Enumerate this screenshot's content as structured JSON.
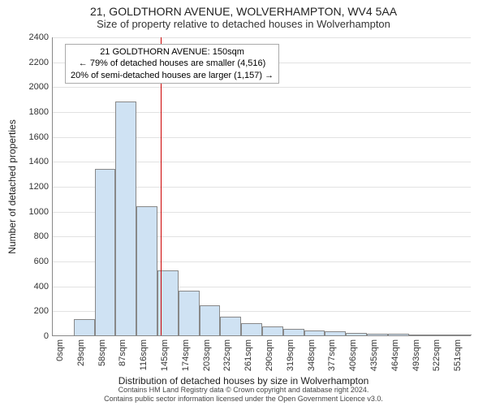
{
  "title": "21, GOLDTHORN AVENUE, WOLVERHAMPTON, WV4 5AA",
  "subtitle": "Size of property relative to detached houses in Wolverhampton",
  "chart": {
    "type": "histogram",
    "ylabel": "Number of detached properties",
    "xlabel": "Distribution of detached houses by size in Wolverhampton",
    "ylim": [
      0,
      2400
    ],
    "ytick_step": 200,
    "xtick_step": 29,
    "xtick_max": 575,
    "xtick_suffix": "sqm",
    "bar_color": "#cfe2f3",
    "bar_border": "#888888",
    "grid_color": "#e2e2e2",
    "background": "#ffffff",
    "ref_line_color": "#cc0000",
    "ref_line_x": 150,
    "xbin_width": 29,
    "values": [
      0,
      130,
      1340,
      1880,
      1040,
      520,
      360,
      240,
      150,
      100,
      70,
      50,
      40,
      30,
      20,
      15,
      10,
      8,
      6,
      4
    ],
    "infobox": {
      "line1": "21 GOLDTHORN AVENUE: 150sqm",
      "line2": "← 79% of detached houses are smaller (4,516)",
      "line3": "20% of semi-detached houses are larger (1,157) →"
    }
  },
  "footer": {
    "line1": "Contains HM Land Registry data © Crown copyright and database right 2024.",
    "line2": "Contains public sector information licensed under the Open Government Licence v3.0."
  }
}
